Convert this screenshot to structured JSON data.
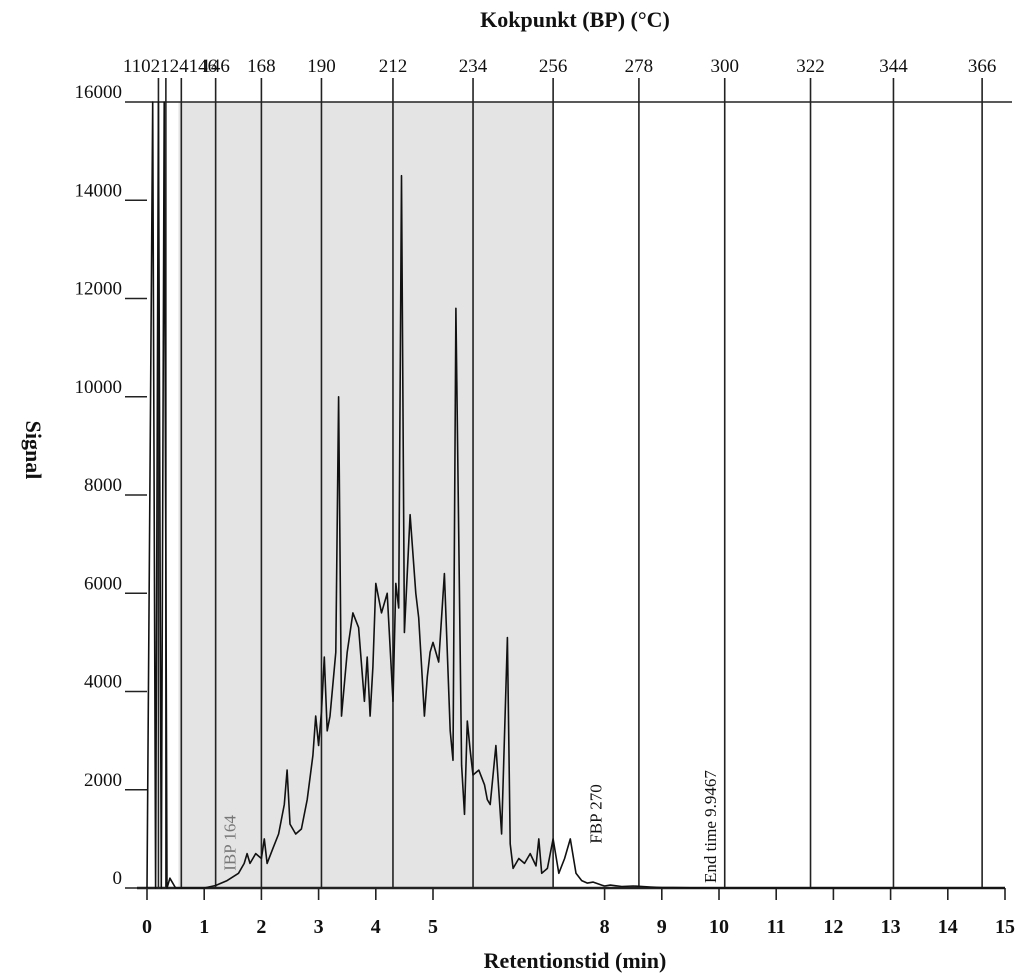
{
  "chart_data": {
    "type": "line",
    "title": "Kokpunkt (BP) (°C)",
    "xlabel": "Retentionstid (min)",
    "ylabel": "Signal",
    "xlim": [
      0,
      15
    ],
    "ylim": [
      0,
      16000
    ],
    "x_ticks": [
      0,
      1,
      2,
      3,
      4,
      5,
      8,
      9,
      10,
      11,
      12,
      13,
      14,
      15
    ],
    "y_ticks": [
      0,
      2000,
      4000,
      6000,
      8000,
      10000,
      12000,
      14000,
      16000
    ],
    "grid": false,
    "top_axis": {
      "label": "Kokpunkt (BP) (°C)",
      "ticks": [
        {
          "x": 0.2,
          "label": "80"
        },
        {
          "x": 0.33,
          "label": "102"
        },
        {
          "x": 0.6,
          "label": "124"
        },
        {
          "x": 1.2,
          "label": "146"
        },
        {
          "x": 2.0,
          "label": "168"
        },
        {
          "x": 3.05,
          "label": "190"
        },
        {
          "x": 4.3,
          "label": "212"
        },
        {
          "x": 5.7,
          "label": "234"
        },
        {
          "x": 7.1,
          "label": "256"
        },
        {
          "x": 8.6,
          "label": "278"
        },
        {
          "x": 10.1,
          "label": "300"
        },
        {
          "x": 11.6,
          "label": "322"
        },
        {
          "x": 13.05,
          "label": "344"
        },
        {
          "x": 14.6,
          "label": "366"
        }
      ],
      "visible_text": "1102124146"
    },
    "shaded_region": {
      "x_start": 0.55,
      "x_end": 7.1
    },
    "annotations": [
      {
        "text": "IBP 164",
        "x": 1.65,
        "y": 250
      },
      {
        "text": "FBP 270",
        "x": 7.95,
        "y": 800
      },
      {
        "text": "End time 9.9467",
        "x": 9.95,
        "y": 0
      }
    ],
    "series": [
      {
        "x": [
          0,
          0.1,
          0.15,
          0.2,
          0.25,
          0.3,
          0.35,
          0.4,
          0.5,
          0.8,
          1.0,
          1.2,
          1.4,
          1.6,
          1.7,
          1.75,
          1.8,
          1.9,
          2.0,
          2.05,
          2.1,
          2.2,
          2.3,
          2.4,
          2.45,
          2.5,
          2.6,
          2.7,
          2.8,
          2.9,
          2.95,
          3.0,
          3.05,
          3.1,
          3.15,
          3.2,
          3.3,
          3.35,
          3.4,
          3.5,
          3.6,
          3.7,
          3.8,
          3.85,
          3.9,
          3.95,
          4.0,
          4.1,
          4.2,
          4.3,
          4.35,
          4.4,
          4.45,
          4.5,
          4.6,
          4.7,
          4.75,
          4.8,
          4.85,
          4.9,
          4.95,
          5.0,
          5.1,
          5.2,
          5.3,
          5.35,
          5.4,
          5.5,
          5.55,
          5.6,
          5.65,
          5.7,
          5.8,
          5.9,
          5.95,
          6.0,
          6.1,
          6.2,
          6.3,
          6.35,
          6.4,
          6.5,
          6.6,
          6.7,
          6.8,
          6.85,
          6.9,
          7.0,
          7.1,
          7.2,
          7.3,
          7.4,
          7.5,
          7.6,
          7.7,
          7.8,
          7.9,
          7.95,
          8.0,
          8.1,
          8.3,
          8.5,
          8.8,
          9.0,
          9.2,
          9.5,
          10.0,
          11.0,
          12.0,
          13.0,
          14.0,
          15.0
        ],
        "y": [
          0,
          16000,
          0,
          16000,
          0,
          16000,
          0,
          200,
          0,
          0,
          0,
          50,
          150,
          300,
          500,
          700,
          500,
          700,
          600,
          1000,
          500,
          800,
          1100,
          1700,
          2400,
          1300,
          1100,
          1200,
          1800,
          2700,
          3500,
          2900,
          3600,
          4700,
          3200,
          3500,
          4800,
          10000,
          3500,
          4800,
          5600,
          5300,
          3800,
          4700,
          3500,
          4500,
          6200,
          5600,
          6000,
          3800,
          6200,
          5700,
          14500,
          5200,
          7600,
          6000,
          5500,
          4500,
          3500,
          4300,
          4800,
          5000,
          4600,
          6400,
          3200,
          2600,
          11800,
          2500,
          1500,
          3400,
          2800,
          2300,
          2400,
          2100,
          1800,
          1700,
          2900,
          1100,
          5100,
          900,
          400,
          600,
          500,
          700,
          450,
          1000,
          300,
          400,
          1000,
          300,
          600,
          1000,
          300,
          150,
          100,
          120,
          80,
          60,
          40,
          60,
          30,
          40,
          20,
          10,
          10,
          5,
          0,
          0,
          0,
          0,
          0,
          0
        ]
      }
    ]
  }
}
